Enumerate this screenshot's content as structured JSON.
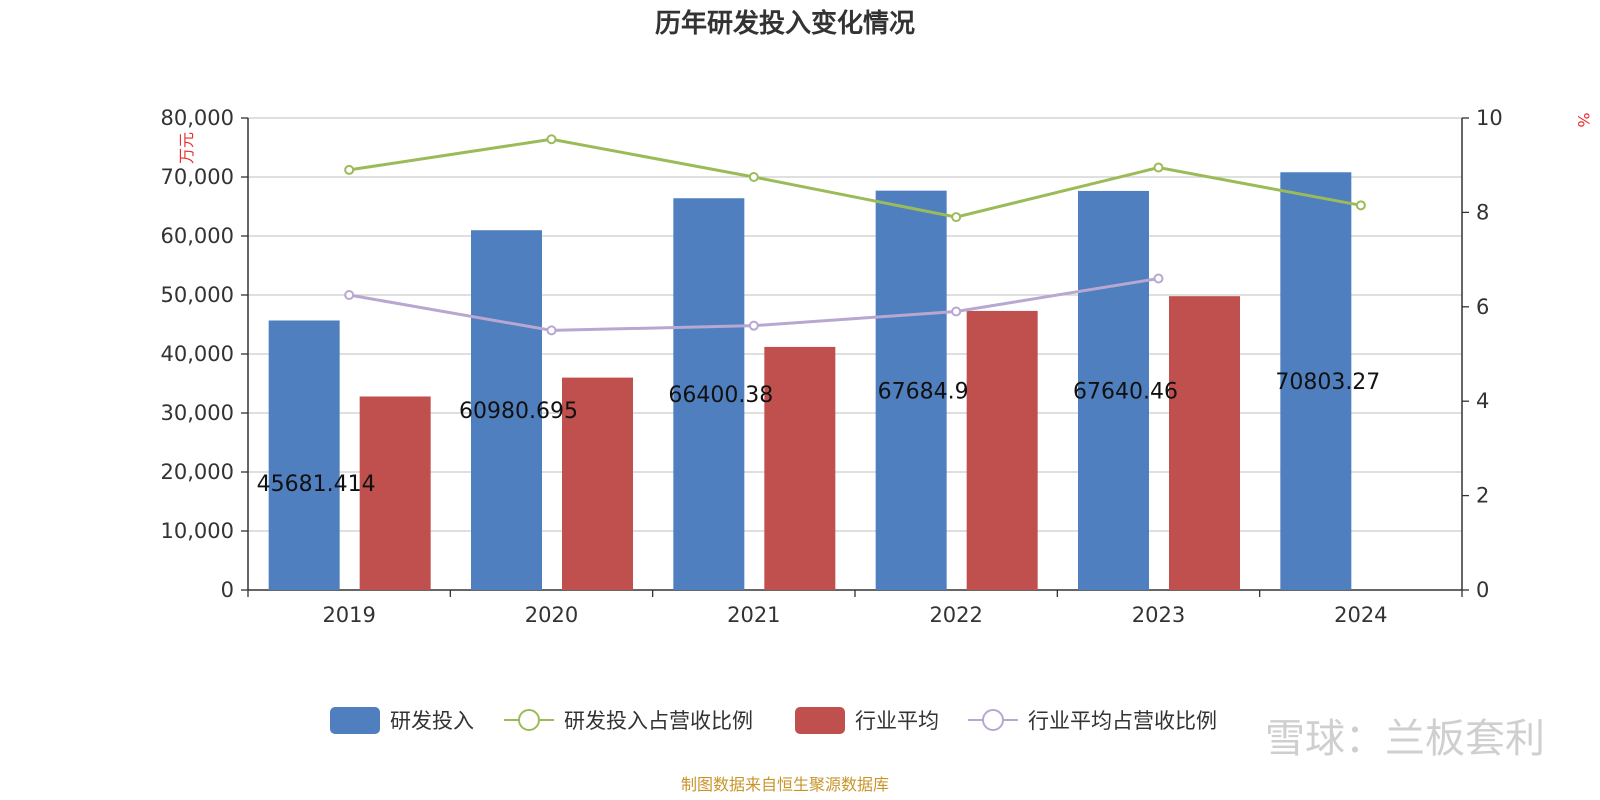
{
  "colors": {
    "rd": "#4f7fbf",
    "rd_ratio": "#9bbb59",
    "ind_avg": "#c0504d",
    "ind_ratio": "#b7a7d1",
    "grid": "#cccccc",
    "axis": "#333333",
    "unit": "#e8312f",
    "source": "#c8952b"
  },
  "source_text": "制图数据来自恒生聚源数据库",
  "watermark": "雪球：兰板套利",
  "chart_data": {
    "type": "bar",
    "title": "历年研发投入变化情况",
    "categories": [
      "2019",
      "2020",
      "2021",
      "2022",
      "2023",
      "2024"
    ],
    "y_left": {
      "label": "万元",
      "min": 0,
      "max": 80000,
      "ticks": [
        "0",
        "10,000",
        "20,000",
        "30,000",
        "40,000",
        "50,000",
        "60,000",
        "70,000",
        "80,000"
      ]
    },
    "y_right": {
      "label": "%",
      "min": 0,
      "max": 10,
      "ticks": [
        "0",
        "2",
        "4",
        "6",
        "8",
        "10"
      ]
    },
    "grid": true,
    "legend_position": "bottom",
    "series": [
      {
        "name": "研发投入",
        "type": "bar",
        "axis": "left",
        "color": "#4f7fbf",
        "values": [
          45681.414,
          60980.695,
          66400.38,
          67684.9,
          67640.46,
          70803.27
        ],
        "labels": [
          "45681.414",
          "60980.695",
          "66400.38",
          "67684.9",
          "67640.46",
          "70803.27"
        ]
      },
      {
        "name": "研发投入占营收比例",
        "type": "line",
        "axis": "right",
        "color": "#9bbb59",
        "values": [
          8.9,
          9.55,
          8.75,
          7.9,
          8.95,
          8.15
        ]
      },
      {
        "name": "行业平均",
        "type": "bar",
        "axis": "left",
        "color": "#c0504d",
        "values": [
          32800,
          36000,
          41200,
          47300,
          49800,
          null
        ]
      },
      {
        "name": "行业平均占营收比例",
        "type": "line",
        "axis": "right",
        "color": "#b7a7d1",
        "values": [
          6.25,
          5.5,
          5.6,
          5.9,
          6.6,
          null
        ]
      }
    ]
  }
}
